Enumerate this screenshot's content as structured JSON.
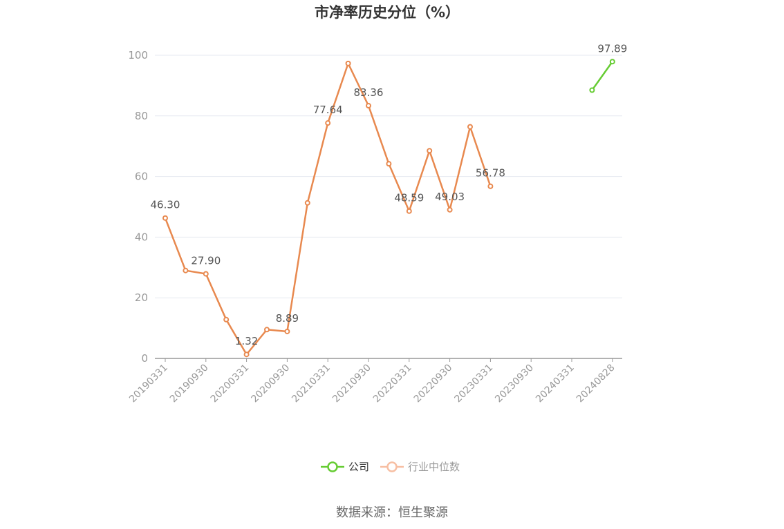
{
  "chart_data": {
    "type": "line",
    "title": "市净率历史分位（%）",
    "ylim": [
      0,
      100
    ],
    "yticks": [
      0,
      20,
      40,
      60,
      80,
      100
    ],
    "x_tick_labels": [
      "20190331",
      "20190930",
      "20200331",
      "20200930",
      "20210331",
      "20210930",
      "20220331",
      "20220930",
      "20230331",
      "20230930",
      "20240331",
      "20240828"
    ],
    "grid": true,
    "legend_position": "bottom",
    "series": [
      {
        "name": "公司",
        "color": "#66cc33",
        "points": [
          {
            "x": "2024-Q2",
            "y": 88.5
          },
          {
            "x": "20240828",
            "y": 97.89,
            "label": "97.89"
          }
        ]
      },
      {
        "name": "行业中位数",
        "color": "#f7bfa3",
        "line_color": "#e8894f",
        "points": [
          {
            "x": "20190331",
            "y": 46.3,
            "label": "46.30"
          },
          {
            "x": "2019-Q2",
            "y": 29.0
          },
          {
            "x": "20190930",
            "y": 27.9,
            "label": "27.90"
          },
          {
            "x": "2019-Q4",
            "y": 12.8
          },
          {
            "x": "20200331",
            "y": 1.32,
            "label": "1.32"
          },
          {
            "x": "2020-Q2",
            "y": 9.5
          },
          {
            "x": "20200930",
            "y": 8.89,
            "label": "8.89"
          },
          {
            "x": "2020-Q4",
            "y": 51.3
          },
          {
            "x": "20210331",
            "y": 77.64,
            "label": "77.64"
          },
          {
            "x": "2021-Q2",
            "y": 97.3
          },
          {
            "x": "20210930",
            "y": 83.36,
            "label": "83.36"
          },
          {
            "x": "2021-Q4",
            "y": 64.2
          },
          {
            "x": "20220331",
            "y": 48.59,
            "label": "48.59"
          },
          {
            "x": "2022-Q2",
            "y": 68.5
          },
          {
            "x": "20220930",
            "y": 49.03,
            "label": "49.03"
          },
          {
            "x": "2022-Q4",
            "y": 76.4
          },
          {
            "x": "20230331",
            "y": 56.78,
            "label": "56.78"
          }
        ]
      }
    ]
  },
  "legend": [
    {
      "label": "公司",
      "color": "#66cc33",
      "text_color": "#333333"
    },
    {
      "label": "行业中位数",
      "color": "#f7bfa3",
      "text_color": "#999999"
    }
  ],
  "source_text": "数据来源：恒生聚源"
}
